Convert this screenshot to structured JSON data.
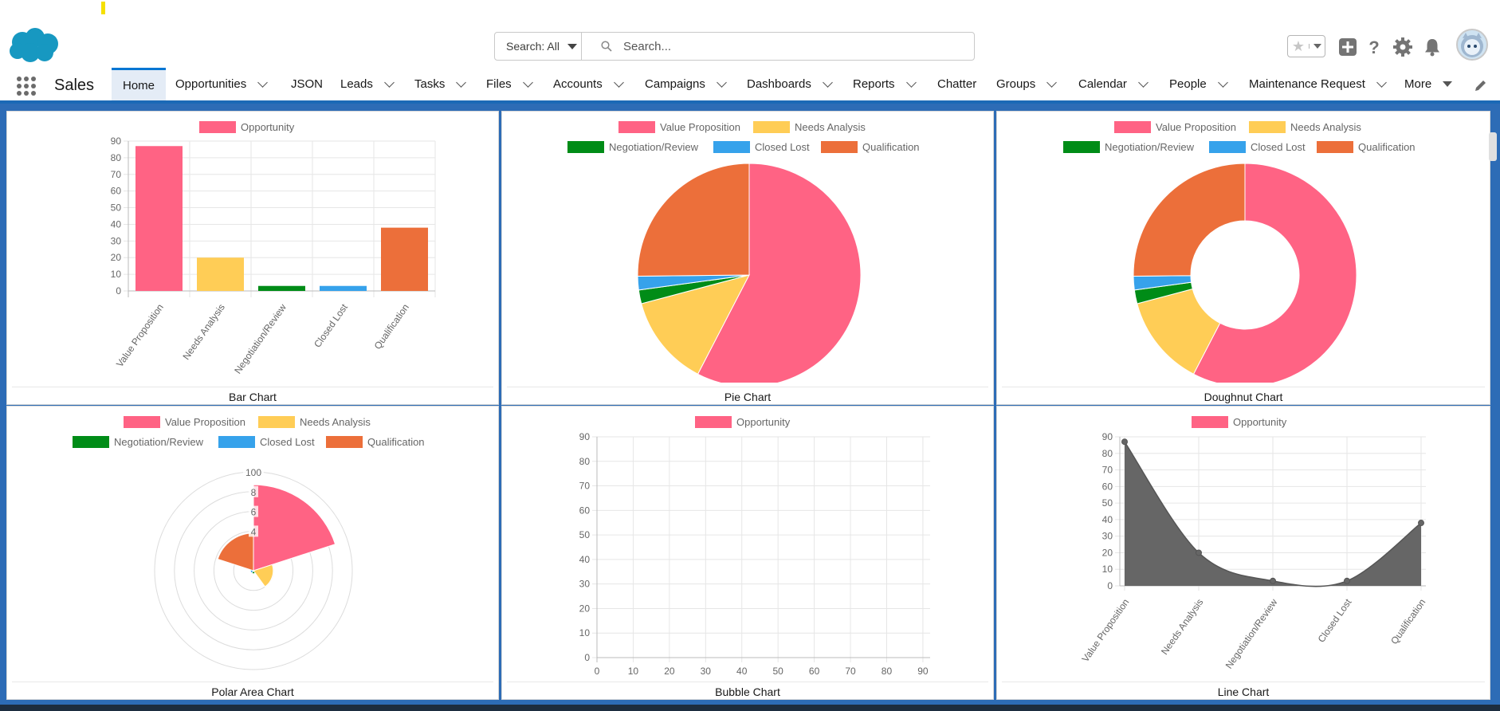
{
  "header": {
    "search_scope": "Search: All",
    "search_placeholder": "Search..."
  },
  "nav": {
    "app_name": "Sales",
    "items": [
      {
        "label": "Home",
        "dropdown": false,
        "active": true
      },
      {
        "label": "Opportunities",
        "dropdown": true
      },
      {
        "label": "JSON",
        "dropdown": false
      },
      {
        "label": "Leads",
        "dropdown": true
      },
      {
        "label": "Tasks",
        "dropdown": true
      },
      {
        "label": "Files",
        "dropdown": true
      },
      {
        "label": "Accounts",
        "dropdown": true
      },
      {
        "label": "Campaigns",
        "dropdown": true
      },
      {
        "label": "Dashboards",
        "dropdown": true
      },
      {
        "label": "Reports",
        "dropdown": true
      },
      {
        "label": "Chatter",
        "dropdown": false
      },
      {
        "label": "Groups",
        "dropdown": true
      },
      {
        "label": "Calendar",
        "dropdown": true
      },
      {
        "label": "People",
        "dropdown": true
      },
      {
        "label": "Maintenance Request",
        "dropdown": true
      }
    ],
    "more_label": "More"
  },
  "icons": {
    "favorites": "star-icon",
    "add": "plus-icon",
    "help": "help-icon",
    "setup": "gear-icon",
    "notifications": "bell-icon",
    "edit_nav": "pencil-icon",
    "launcher": "app-launcher-grid-icon",
    "search": "search-icon"
  },
  "colors": {
    "brand_blue": "#0176d3",
    "value_proposition": "#ff6384",
    "needs_analysis": "#ffcd56",
    "negotiation_review": "#008c17",
    "closed_lost": "#36a2eb",
    "qualification": "#ec6f3a",
    "line_fill": "#666666"
  },
  "chart_data": [
    {
      "type": "bar",
      "title": "Bar Chart",
      "categories": [
        "Value Proposition",
        "Needs Analysis",
        "Negotiation/Review",
        "Closed Lost",
        "Qualification"
      ],
      "series": [
        {
          "name": "Opportunity",
          "values": [
            87,
            20,
            3,
            3,
            38
          ]
        }
      ],
      "yticks": [
        0,
        10,
        20,
        30,
        40,
        50,
        60,
        70,
        80,
        90
      ],
      "ylim": [
        0,
        90
      ],
      "legend": "top",
      "grid": true
    },
    {
      "type": "pie",
      "title": "Pie Chart",
      "labels": [
        "Value Proposition",
        "Needs Analysis",
        "Negotiation/Review",
        "Closed Lost",
        "Qualification"
      ],
      "values": [
        87,
        20,
        3,
        3,
        38
      ],
      "legend": "top"
    },
    {
      "type": "doughnut",
      "title": "Doughnut Chart",
      "labels": [
        "Value Proposition",
        "Needs Analysis",
        "Negotiation/Review",
        "Closed Lost",
        "Qualification"
      ],
      "values": [
        87,
        20,
        3,
        3,
        38
      ],
      "legend": "top"
    },
    {
      "type": "polarArea",
      "title": "Polar Area Chart",
      "labels": [
        "Value Proposition",
        "Needs Analysis",
        "Negotiation/Review",
        "Closed Lost",
        "Qualification"
      ],
      "values": [
        87,
        20,
        3,
        3,
        38
      ],
      "rlim": [
        0,
        100
      ],
      "rticks": [
        "100",
        "8",
        "6",
        "4"
      ],
      "legend": "top"
    },
    {
      "type": "scatter",
      "title": "Bubble Chart",
      "series": [
        {
          "name": "Opportunity",
          "points": []
        }
      ],
      "xticks": [
        0,
        10,
        20,
        30,
        40,
        50,
        60,
        70,
        80,
        90
      ],
      "yticks": [
        0,
        10,
        20,
        30,
        40,
        50,
        60,
        70,
        80,
        90
      ],
      "xlim": [
        0,
        92
      ],
      "ylim": [
        0,
        90
      ],
      "legend": "top",
      "grid": true
    },
    {
      "type": "line",
      "title": "Line Chart",
      "categories": [
        "Value Proposition",
        "Needs Analysis",
        "Negotiation/Review",
        "Closed Lost",
        "Qualification"
      ],
      "series": [
        {
          "name": "Opportunity",
          "values": [
            87,
            20,
            3,
            3,
            38
          ],
          "filled": true
        }
      ],
      "yticks": [
        0,
        10,
        20,
        30,
        40,
        50,
        60,
        70,
        80,
        90
      ],
      "ylim": [
        0,
        90
      ],
      "legend": "top",
      "grid": true
    }
  ]
}
